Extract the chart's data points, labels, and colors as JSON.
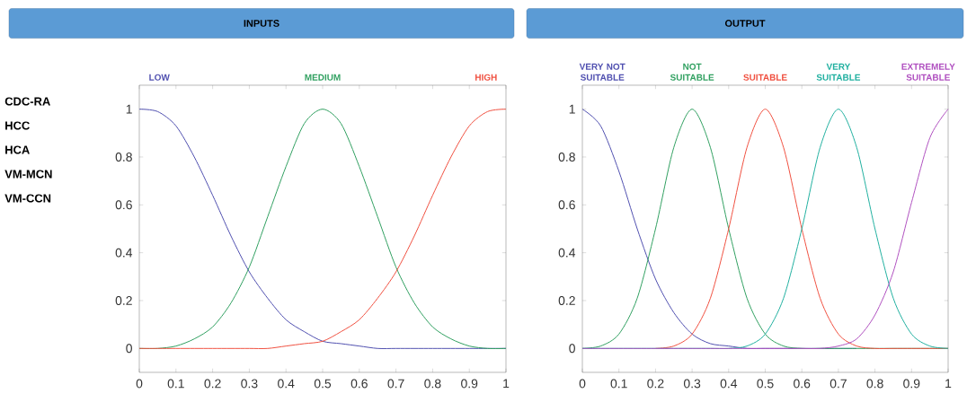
{
  "chart_data": [
    {
      "type": "line",
      "title": "INPUTS",
      "annotations": [
        "CDC-RA",
        "HCC",
        "HCA",
        "VM-MCN",
        "VM-CCN"
      ],
      "x": [
        0,
        0.05,
        0.1,
        0.15,
        0.2,
        0.25,
        0.3,
        0.35,
        0.4,
        0.45,
        0.5,
        0.55,
        0.6,
        0.65,
        0.7,
        0.75,
        0.8,
        0.85,
        0.9,
        0.95,
        1
      ],
      "series": [
        {
          "name": "LOW",
          "color": "#5050b0",
          "values": [
            1,
            0.99,
            0.93,
            0.8,
            0.64,
            0.47,
            0.32,
            0.21,
            0.12,
            0.07,
            0.03,
            0.02,
            0.01,
            0,
            0,
            0,
            0,
            0,
            0,
            0,
            0
          ]
        },
        {
          "name": "MEDIUM",
          "color": "#30a060",
          "values": [
            0,
            0,
            0.01,
            0.04,
            0.09,
            0.19,
            0.34,
            0.55,
            0.76,
            0.94,
            1,
            0.94,
            0.76,
            0.55,
            0.34,
            0.19,
            0.09,
            0.04,
            0.01,
            0,
            0
          ]
        },
        {
          "name": "HIGH",
          "color": "#f05040",
          "values": [
            0,
            0,
            0,
            0,
            0,
            0,
            0,
            0,
            0.01,
            0.02,
            0.03,
            0.07,
            0.12,
            0.21,
            0.32,
            0.47,
            0.64,
            0.8,
            0.93,
            0.99,
            1
          ]
        }
      ],
      "xlim": [
        0,
        1
      ],
      "ylim": [
        -0.1,
        1.1
      ],
      "xticks": [
        0,
        0.1,
        0.2,
        0.3,
        0.4,
        0.5,
        0.6,
        0.7,
        0.8,
        0.9,
        1
      ],
      "yticks": [
        0,
        0.2,
        0.4,
        0.6,
        0.8,
        1
      ]
    },
    {
      "type": "line",
      "title": "OUTPUT",
      "x": [
        0,
        0.05,
        0.1,
        0.15,
        0.2,
        0.25,
        0.3,
        0.35,
        0.4,
        0.45,
        0.5,
        0.55,
        0.6,
        0.65,
        0.7,
        0.75,
        0.8,
        0.85,
        0.9,
        0.95,
        1
      ],
      "series": [
        {
          "name": "VERY NOT SUITABLE",
          "color": "#5050b0",
          "values": [
            1,
            0.93,
            0.74,
            0.5,
            0.29,
            0.15,
            0.06,
            0.02,
            0.01,
            0,
            0,
            0,
            0,
            0,
            0,
            0,
            null,
            null,
            null,
            null,
            null
          ]
        },
        {
          "name": "NOT SUITABLE",
          "color": "#30a060",
          "values": [
            0,
            0.01,
            0.06,
            0.21,
            0.5,
            0.84,
            1,
            0.84,
            0.5,
            0.21,
            0.06,
            0.01,
            0,
            0,
            0,
            0,
            0,
            0,
            0,
            0,
            0
          ]
        },
        {
          "name": "SUITABLE",
          "color": "#f05040",
          "values": [
            null,
            null,
            null,
            null,
            0,
            0.01,
            0.06,
            0.21,
            0.5,
            0.84,
            1,
            0.84,
            0.5,
            0.21,
            0.06,
            0.01,
            0,
            0,
            0,
            0,
            0
          ]
        },
        {
          "name": "VERY SUITABLE",
          "color": "#20b0a0",
          "values": [
            0,
            0,
            0,
            0,
            0,
            0,
            0,
            0,
            0,
            0.01,
            0.06,
            0.21,
            0.5,
            0.84,
            1,
            0.84,
            0.5,
            0.21,
            0.06,
            0.01,
            0
          ]
        },
        {
          "name": "EXTREMELY SUITABLE",
          "color": "#b050c0",
          "values": [
            0,
            0,
            0,
            0,
            0,
            0,
            0,
            0,
            0,
            0,
            0,
            0,
            0,
            0,
            0.01,
            0.04,
            0.14,
            0.32,
            0.61,
            0.88,
            1
          ]
        }
      ],
      "xlim": [
        0,
        1
      ],
      "ylim": [
        -0.1,
        1.1
      ],
      "xticks": [
        0,
        0.1,
        0.2,
        0.3,
        0.4,
        0.5,
        0.6,
        0.7,
        0.8,
        0.9,
        1
      ],
      "yticks": [
        0,
        0.2,
        0.4,
        0.6,
        0.8,
        1
      ]
    }
  ]
}
